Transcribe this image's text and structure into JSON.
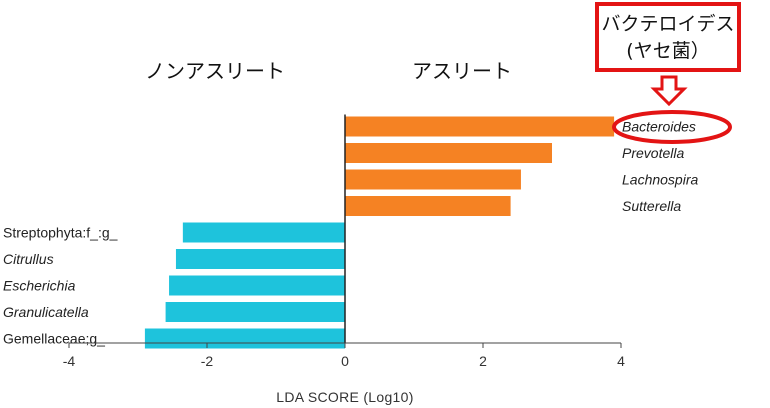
{
  "group_labels": {
    "left": "ノンアスリート",
    "right": "アスリート"
  },
  "callout": {
    "line1": "バクテロイデス",
    "line2": "(ヤセ菌）",
    "target": "Bacteroides",
    "color": "#e31414"
  },
  "chart_data": {
    "type": "bar",
    "orientation": "horizontal",
    "xlabel": "LDA SCORE (Log10)",
    "xlim": [
      -4,
      4
    ],
    "xticks": [
      -4,
      -2,
      0,
      2,
      4
    ],
    "bars": [
      {
        "label": "Bacteroides",
        "value": 3.9,
        "group": "right",
        "italic": true
      },
      {
        "label": "Prevotella",
        "value": 3.0,
        "group": "right",
        "italic": true
      },
      {
        "label": "Lachnospira",
        "value": 2.55,
        "group": "right",
        "italic": true
      },
      {
        "label": "Sutterella",
        "value": 2.4,
        "group": "right",
        "italic": true
      },
      {
        "label": "Streptophyta:f_:g_",
        "value": -2.35,
        "group": "left",
        "italic": false
      },
      {
        "label": "Citrullus",
        "value": -2.45,
        "group": "left",
        "italic": true
      },
      {
        "label": "Escherichia",
        "value": -2.55,
        "group": "left",
        "italic": true
      },
      {
        "label": "Granulicatella",
        "value": -2.6,
        "group": "left",
        "italic": true
      },
      {
        "label": "Gemellaceae;g_",
        "value": -2.9,
        "group": "left",
        "italic": false
      }
    ],
    "colors": {
      "right": "#f58223",
      "left": "#1ec3dc"
    }
  }
}
